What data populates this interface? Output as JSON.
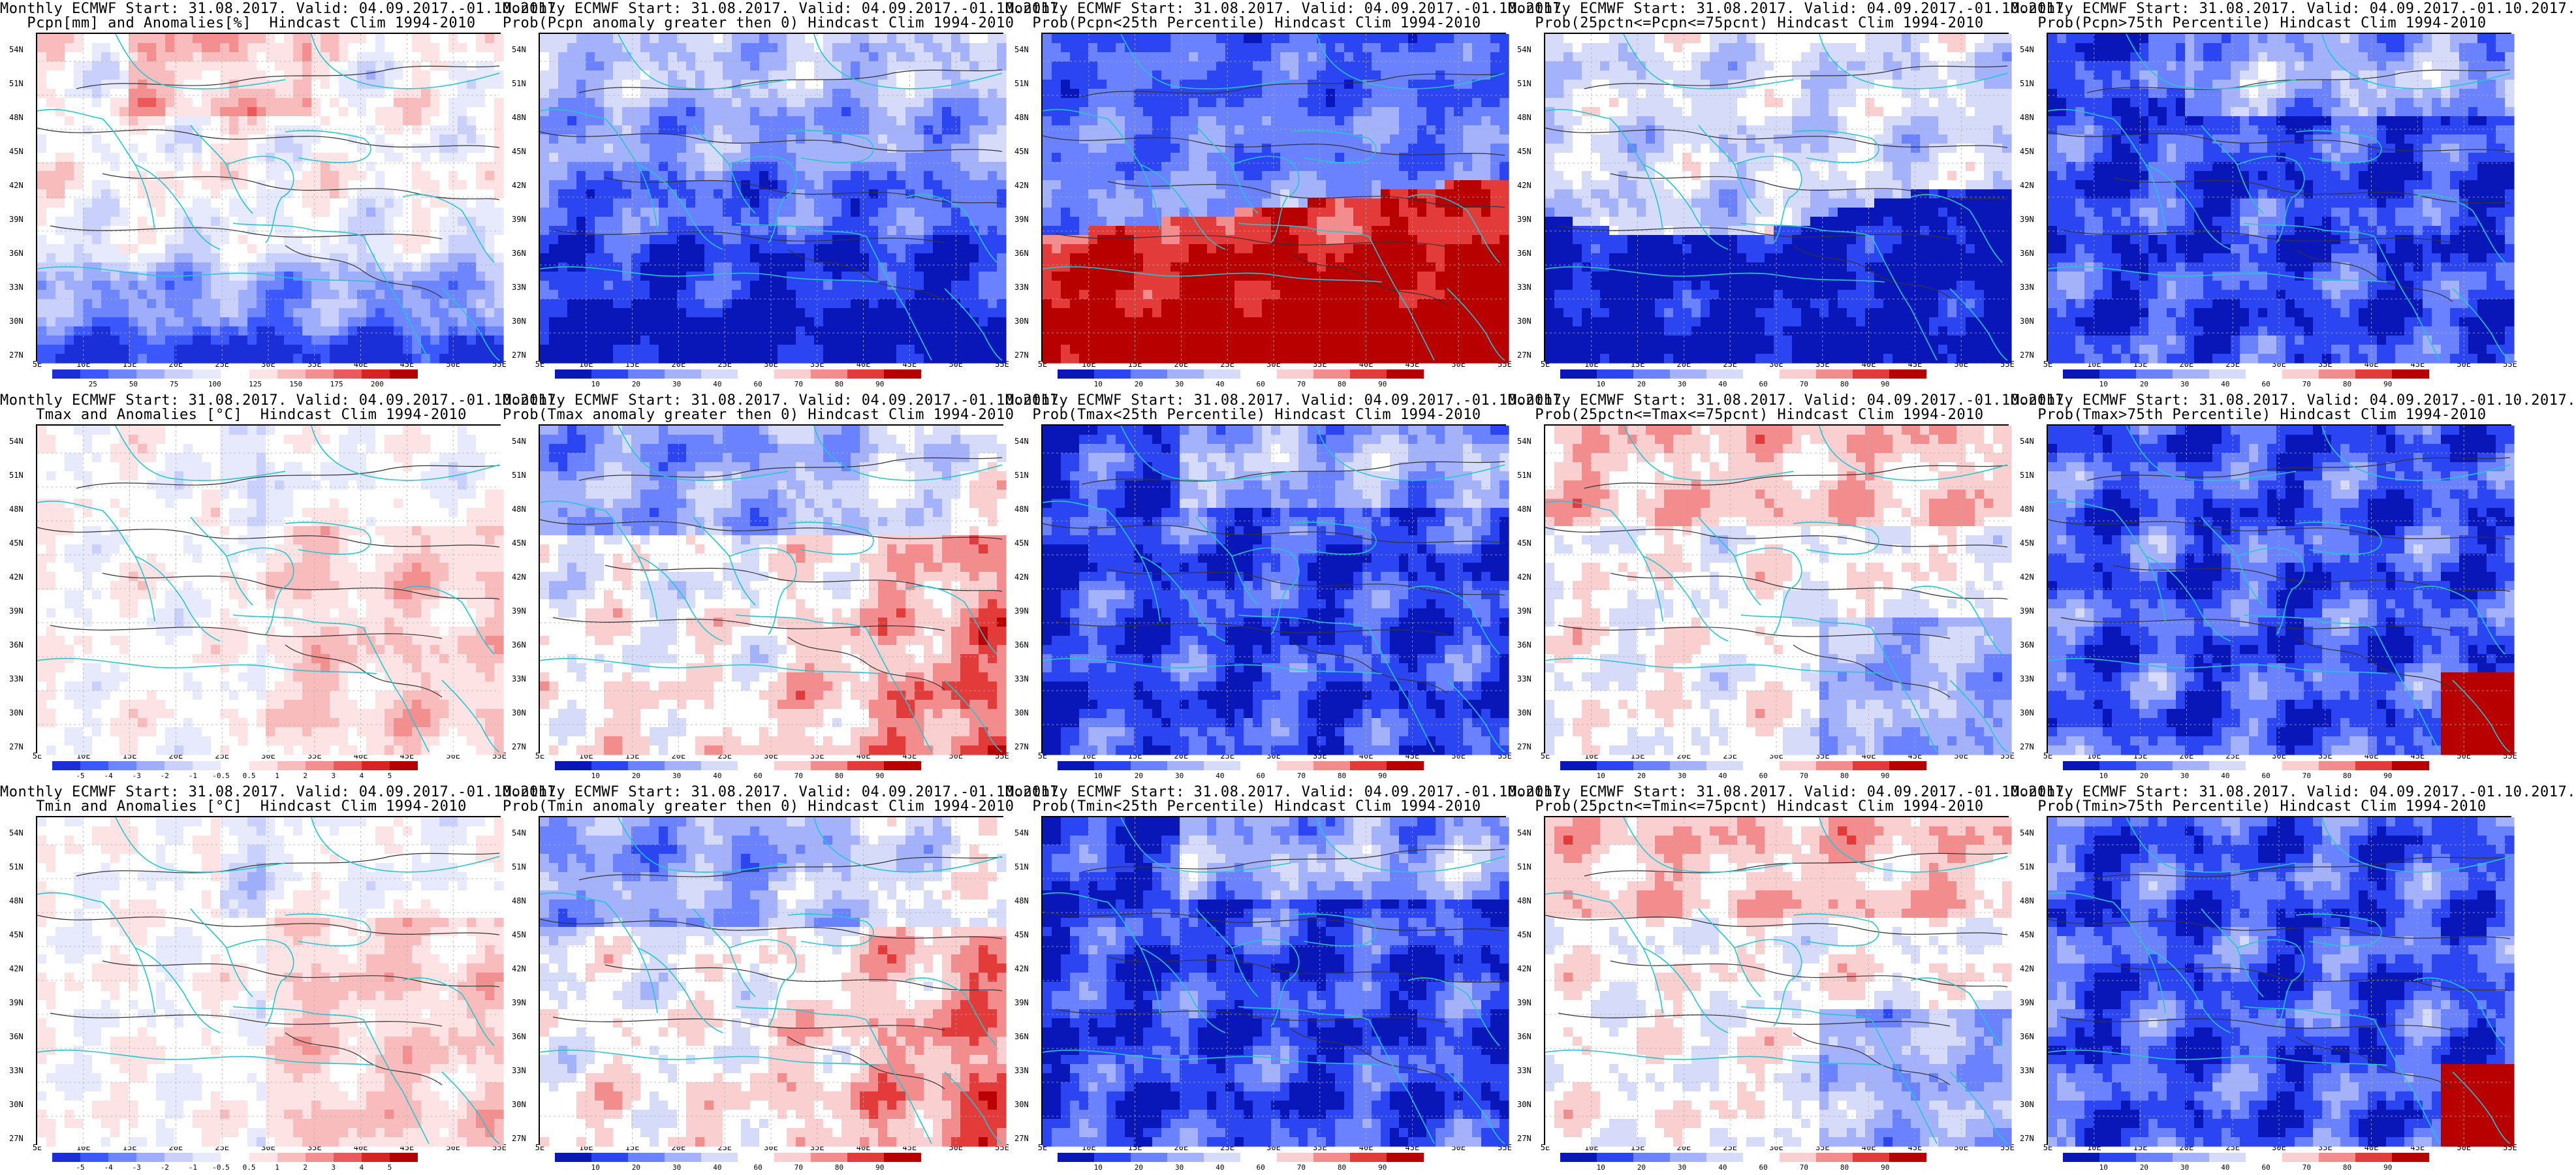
{
  "palettes": {
    "anomaly": [
      "#1a2fd8",
      "#3b58ff",
      "#6d86ff",
      "#9eaefc",
      "#c9d0fb",
      "#e7eafc",
      "#ffffff",
      "#fde3e3",
      "#f9bcbc",
      "#f48f8f",
      "#ea5a5a",
      "#d82323",
      "#b40000"
    ],
    "prob": [
      "#0a17b8",
      "#2b45f2",
      "#6a82ff",
      "#a3b2fb",
      "#d6dbfa",
      "#ffffff",
      "#f9cfcf",
      "#f38d8d",
      "#e33a3a",
      "#b80000"
    ]
  },
  "coastline_color": "#20c8d0",
  "lat_labels": [
    "54N",
    "51N",
    "48N",
    "45N",
    "42N",
    "39N",
    "36N",
    "33N",
    "30N",
    "27N"
  ],
  "lon_labels": [
    "5E",
    "10E",
    "15E",
    "20E",
    "25E",
    "30E",
    "35E",
    "40E",
    "45E",
    "50E",
    "55E"
  ],
  "panels": [
    {
      "title1": "Monthly ECMWF Start: 31.08.2017. Valid: 04.09.2017.-01.10.2017.",
      "title2": "Pcpn[mm] and Anomalies[%]  Hindcast Clim 1994-2010",
      "palette": "anomaly",
      "scheme": "pcpn",
      "colorbar": [
        "25",
        "50",
        "75",
        "100",
        "125",
        "150",
        "175",
        "200"
      ]
    },
    {
      "title1": "Monthly ECMWF Start: 31.08.2017. Valid: 04.09.2017.-01.10.2017.",
      "title2": "Prob(Pcpn anomaly greater then 0) Hindcast Clim 1994-2010",
      "palette": "prob",
      "scheme": "blueSouth",
      "colorbar": [
        "10",
        "20",
        "30",
        "40",
        "60",
        "70",
        "80",
        "90"
      ]
    },
    {
      "title1": "Monthly ECMWF Start: 31.08.2017. Valid: 04.09.2017.-01.10.2017.",
      "title2": "Prob(Pcpn<25th Percentile) Hindcast Clim 1994-2010",
      "palette": "prob",
      "scheme": "redSouth",
      "colorbar": [
        "10",
        "20",
        "30",
        "40",
        "60",
        "70",
        "80",
        "90"
      ]
    },
    {
      "title1": "Monthly ECMWF Start: 31.08.2017. Valid: 04.09.2017.-01.10.2017.",
      "title2": "Prob(25pctn<=Pcpn<=75pcnt) Hindcast Clim 1994-2010",
      "palette": "prob",
      "scheme": "mixedBlueSouth",
      "colorbar": [
        "10",
        "20",
        "30",
        "40",
        "60",
        "70",
        "80",
        "90"
      ]
    },
    {
      "title1": "Monthly ECMWF Start: 31.08.2017. Valid: 04.09.2017.-01.10.2017.",
      "title2": "Prob(Pcpn>75th Percentile) Hindcast Clim 1994-2010",
      "palette": "prob",
      "scheme": "blueAll",
      "colorbar": [
        "10",
        "20",
        "30",
        "40",
        "60",
        "70",
        "80",
        "90"
      ]
    },
    {
      "title1": "Monthly ECMWF Start: 31.08.2017. Valid: 04.09.2017.-01.10.2017.",
      "title2": "Tmax and Anomalies [°C]  Hindcast Clim 1994-2010",
      "palette": "anomaly",
      "scheme": "tanom",
      "colorbar": [
        "-5",
        "-4",
        "-3",
        "-2",
        "-1",
        "-0.5",
        "0.5",
        "1",
        "2",
        "3",
        "4",
        "5"
      ]
    },
    {
      "title1": "Monthly ECMWF Start: 31.08.2017. Valid: 04.09.2017.-01.10.2017.",
      "title2": "Prob(Tmax anomaly greater then 0) Hindcast Clim 1994-2010",
      "palette": "prob",
      "scheme": "redEast",
      "colorbar": [
        "10",
        "20",
        "30",
        "40",
        "60",
        "70",
        "80",
        "90"
      ]
    },
    {
      "title1": "Monthly ECMWF Start: 31.08.2017. Valid: 04.09.2017.-01.10.2017.",
      "title2": "Prob(Tmax<25th Percentile) Hindcast Clim 1994-2010",
      "palette": "prob",
      "scheme": "blueAll",
      "colorbar": [
        "10",
        "20",
        "30",
        "40",
        "60",
        "70",
        "80",
        "90"
      ]
    },
    {
      "title1": "Monthly ECMWF Start: 31.08.2017. Valid: 04.09.2017.-01.10.2017.",
      "title2": "Prob(25pctn<=Tmax<=75pcnt) Hindcast Clim 1994-2010",
      "palette": "prob",
      "scheme": "mixedRed",
      "colorbar": [
        "10",
        "20",
        "30",
        "40",
        "60",
        "70",
        "80",
        "90"
      ]
    },
    {
      "title1": "Monthly ECMWF Start: 31.08.2017. Valid: 04.09.2017.-01.10.2017.",
      "title2": "Prob(Tmax>75th Percentile) Hindcast Clim 1994-2010",
      "palette": "prob",
      "scheme": "blueRedSE",
      "colorbar": [
        "10",
        "20",
        "30",
        "40",
        "60",
        "70",
        "80",
        "90"
      ]
    },
    {
      "title1": "Monthly ECMWF Start: 31.08.2017. Valid: 04.09.2017.-01.10.2017.",
      "title2": "Tmin and Anomalies [°C]  Hindcast Clim 1994-2010",
      "palette": "anomaly",
      "scheme": "tanom",
      "colorbar": [
        "-5",
        "-4",
        "-3",
        "-2",
        "-1",
        "-0.5",
        "0.5",
        "1",
        "2",
        "3",
        "4",
        "5"
      ]
    },
    {
      "title1": "Monthly ECMWF Start: 31.08.2017. Valid: 04.09.2017.-01.10.2017.",
      "title2": "Prob(Tmin anomaly greater then 0) Hindcast Clim 1994-2010",
      "palette": "prob",
      "scheme": "redEast",
      "colorbar": [
        "10",
        "20",
        "30",
        "40",
        "60",
        "70",
        "80",
        "90"
      ]
    },
    {
      "title1": "Monthly ECMWF Start: 31.08.2017. Valid: 04.09.2017.-01.10.2017.",
      "title2": "Prob(Tmin<25th Percentile) Hindcast Clim 1994-2010",
      "palette": "prob",
      "scheme": "blueAll",
      "colorbar": [
        "10",
        "20",
        "30",
        "40",
        "60",
        "70",
        "80",
        "90"
      ]
    },
    {
      "title1": "Monthly ECMWF Start: 31.08.2017. Valid: 04.09.2017.-01.10.2017.",
      "title2": "Prob(25pctn<=Tmin<=75pcnt) Hindcast Clim 1994-2010",
      "palette": "prob",
      "scheme": "mixedRed",
      "colorbar": [
        "10",
        "20",
        "30",
        "40",
        "60",
        "70",
        "80",
        "90"
      ]
    },
    {
      "title1": "Monthly ECMWF Start: 31.08.2017. Valid: 04.09.2017.-01.10.2017.",
      "title2": "Prob(Tmin>75th Percentile) Hindcast Clim 1994-2010",
      "palette": "prob",
      "scheme": "blueRedSE",
      "colorbar": [
        "10",
        "20",
        "30",
        "40",
        "60",
        "70",
        "80",
        "90"
      ]
    }
  ]
}
